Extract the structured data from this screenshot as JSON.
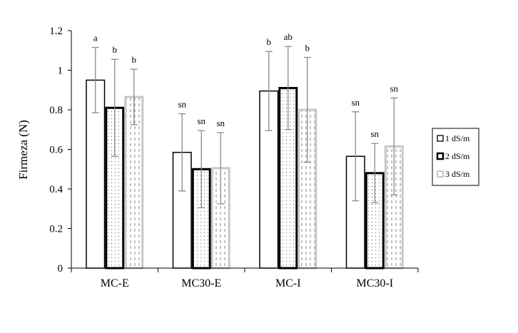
{
  "chart_data": {
    "type": "bar",
    "title": "",
    "xlabel": "",
    "ylabel": "Firmeza (N)",
    "ylim": [
      0,
      1.2
    ],
    "yticks": [
      "0",
      "0.2",
      "0.4",
      "0.6",
      "0.8",
      "1",
      "1.2"
    ],
    "ytick_values": [
      0,
      0.2,
      0.4,
      0.6,
      0.8,
      1.0,
      1.2
    ],
    "grid": false,
    "legend_position": "right",
    "categories": [
      "MC-E",
      "MC30-E",
      "MC-I",
      "MC30-I"
    ],
    "series": [
      {
        "name": "1 dS/m",
        "values": [
          0.95,
          0.585,
          0.895,
          0.565
        ],
        "error": [
          0.165,
          0.195,
          0.2,
          0.225
        ],
        "labels": [
          "a",
          "sn",
          "b",
          "sn"
        ]
      },
      {
        "name": "2 dS/m",
        "values": [
          0.81,
          0.5,
          0.91,
          0.48
        ],
        "error": [
          0.245,
          0.195,
          0.21,
          0.15
        ],
        "labels": [
          "b",
          "sn",
          "ab",
          "sn"
        ]
      },
      {
        "name": "3 dS/m",
        "values": [
          0.865,
          0.505,
          0.8,
          0.615
        ],
        "error": [
          0.14,
          0.18,
          0.265,
          0.245
        ],
        "labels": [
          "b",
          "sn",
          "b",
          "sn"
        ]
      }
    ],
    "colors": {
      "bar_fill": "#ffffff",
      "series_1_border": "#000000",
      "series_2_border": "#000000",
      "series_3_border": "#c8c8c8",
      "error_bar": "#8a8a8a",
      "axis": "#000000",
      "pattern": "#666666"
    }
  }
}
